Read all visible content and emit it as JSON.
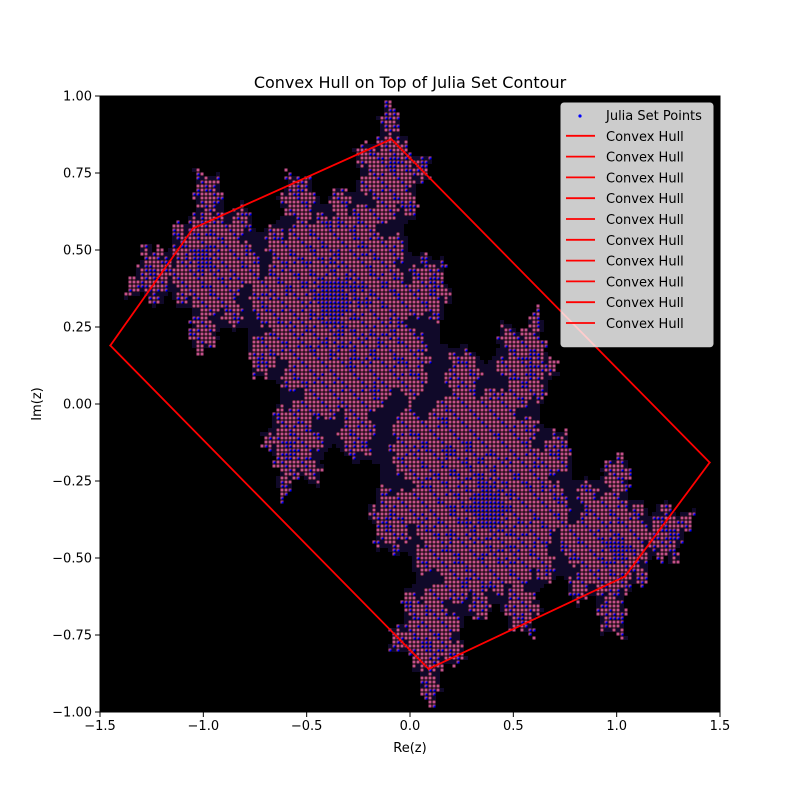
{
  "chart_data": {
    "type": "scatter",
    "title": "Convex Hull on Top of Julia Set Contour",
    "xlabel": "Re(z)",
    "ylabel": "Im(z)",
    "xlim": [
      -1.5,
      1.5
    ],
    "ylim": [
      -1.0,
      1.0
    ],
    "grid": false,
    "legend_position": "top-right",
    "x_ticks": [
      -1.5,
      -1.0,
      -0.5,
      0.0,
      0.5,
      1.0,
      1.5
    ],
    "x_tick_labels": [
      "−1.5",
      "−1.0",
      "−0.5",
      "0.0",
      "0.5",
      "1.0",
      "1.5"
    ],
    "y_ticks": [
      -1.0,
      -0.75,
      -0.5,
      -0.25,
      0.0,
      0.25,
      0.5,
      0.75,
      1.0
    ],
    "y_tick_labels": [
      "−1.00",
      "−0.75",
      "−0.50",
      "−0.25",
      "0.00",
      "0.25",
      "0.50",
      "0.75",
      "1.00"
    ],
    "background_color": "#000000",
    "julia_c": [
      -0.4,
      0.6
    ],
    "series": [
      {
        "name": "Julia Set Points",
        "kind": "scatter",
        "color": "#0000ff",
        "note_count": "dense"
      },
      {
        "name": "Convex Hull",
        "kind": "line",
        "color": "#ff0000"
      },
      {
        "name": "Convex Hull",
        "kind": "line",
        "color": "#ff0000"
      },
      {
        "name": "Convex Hull",
        "kind": "line",
        "color": "#ff0000"
      },
      {
        "name": "Convex Hull",
        "kind": "line",
        "color": "#ff0000"
      },
      {
        "name": "Convex Hull",
        "kind": "line",
        "color": "#ff0000"
      },
      {
        "name": "Convex Hull",
        "kind": "line",
        "color": "#ff0000"
      },
      {
        "name": "Convex Hull",
        "kind": "line",
        "color": "#ff0000"
      },
      {
        "name": "Convex Hull",
        "kind": "line",
        "color": "#ff0000"
      },
      {
        "name": "Convex Hull",
        "kind": "line",
        "color": "#ff0000"
      },
      {
        "name": "Convex Hull",
        "kind": "line",
        "color": "#ff0000"
      }
    ],
    "hull_vertices": [
      [
        -0.09,
        0.86
      ],
      [
        1.45,
        -0.19
      ],
      [
        1.04,
        -0.56
      ],
      [
        0.09,
        -0.86
      ],
      [
        -1.45,
        0.19
      ],
      [
        -1.05,
        0.57
      ]
    ]
  }
}
